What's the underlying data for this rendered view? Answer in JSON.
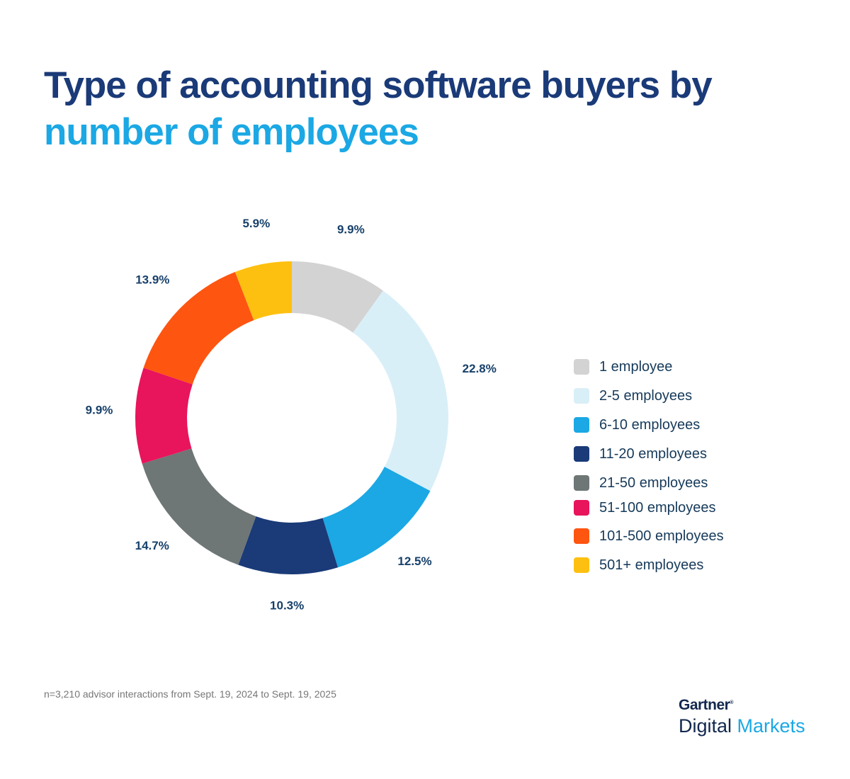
{
  "title": {
    "line1": "Type of accounting software buyers by",
    "line2": "number of employees"
  },
  "chart_data": {
    "type": "pie",
    "donut": true,
    "categories": [
      "1 employee",
      "2-5 employees",
      "6-10 employees",
      "11-20 employees",
      "21-50 employees",
      "51-100 employees",
      "101-500 employees",
      "501+ employees"
    ],
    "values": [
      9.9,
      22.8,
      12.5,
      10.3,
      14.7,
      9.9,
      13.9,
      5.9
    ],
    "labels": [
      "9.9%",
      "22.8%",
      "12.5%",
      "10.3%",
      "14.7%",
      "9.9%",
      "13.9%",
      "5.9%"
    ],
    "colors": [
      "#d3d3d3",
      "#d9eff8",
      "#1ba8e4",
      "#1a3a78",
      "#6e7676",
      "#e8145c",
      "#fe5510",
      "#fec010"
    ],
    "legend_position": "right"
  },
  "footnote": "n=3,210 advisor interactions from Sept. 19, 2024 to Sept. 19, 2025",
  "logo": {
    "brand": "Gartner",
    "brand_mark": "®",
    "product_a": "Digital",
    "product_b": "Markets"
  }
}
